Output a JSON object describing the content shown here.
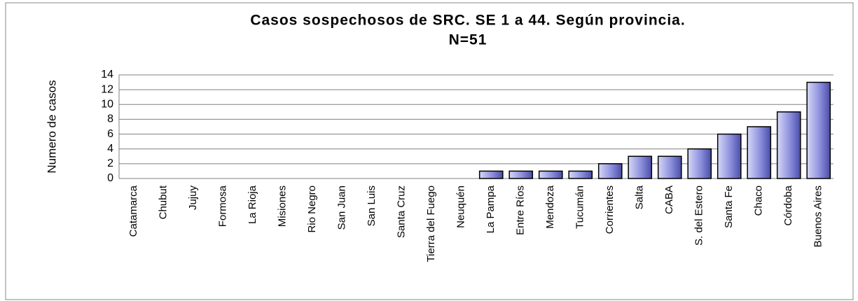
{
  "chart_data": {
    "type": "bar",
    "title": "Casos sospechosos de SRC. SE 1  a 44. Según provincia.",
    "subtitle": "N=51",
    "y_label": "Numero de casos",
    "categories": [
      "Catamarca",
      "Chubut",
      "Jujuy",
      "Formosa",
      "La Rioja",
      "Misiones",
      "Rio Negro",
      "San Juan",
      "San Luis",
      "Santa Cruz",
      "Tierra del Fuego",
      "Neuquén",
      "La Pampa",
      "Entre Ríos",
      "Mendoza",
      "Tucumán",
      "Corrientes",
      "Salta",
      "CABA",
      "S. del Estero",
      "Santa Fe",
      "Chaco",
      "Córdoba",
      "Buenos Aires"
    ],
    "values": [
      0,
      0,
      0,
      0,
      0,
      0,
      0,
      0,
      0,
      0,
      0,
      0,
      1,
      1,
      1,
      1,
      2,
      3,
      3,
      4,
      6,
      7,
      9,
      13
    ],
    "color": "#7d80d4",
    "ylim": [
      0,
      14
    ],
    "yticks": [
      0,
      2,
      4,
      6,
      8,
      10,
      12,
      14
    ],
    "grid": true
  }
}
